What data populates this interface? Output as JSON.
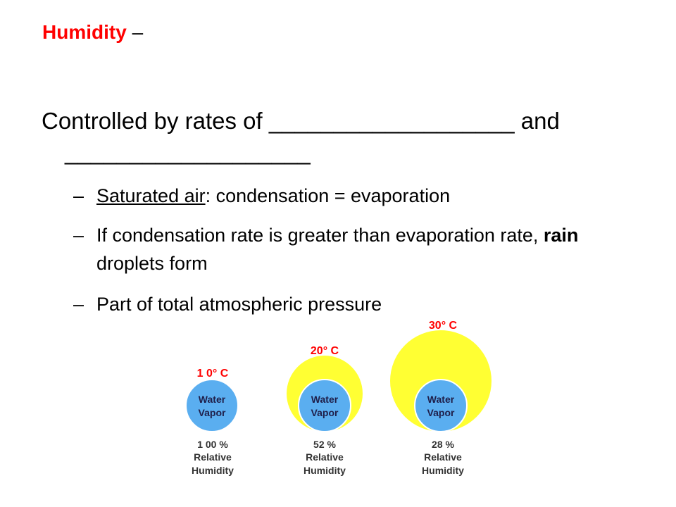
{
  "title": {
    "highlight": "Humidity",
    "dash": "–"
  },
  "main": {
    "prefix": "Controlled by rates of",
    "blank1": "___________________",
    "conj": "and",
    "blank2": "___________________"
  },
  "bullets": [
    {
      "dash": "–",
      "underlined": "Saturated air",
      "rest": ":  condensation = evaporation"
    },
    {
      "dash": "–",
      "before": "If condensation rate is greater than evaporation rate, ",
      "bold": "rain",
      "after": " droplets form"
    },
    {
      "dash": "–",
      "text": "Part of total atmospheric pressure"
    }
  ],
  "diagram": {
    "colors": {
      "saturation": "#ffff33",
      "vapor": "#5aaef0",
      "temp_label": "#ff0000"
    },
    "items": [
      {
        "temp": "1 0° C",
        "vapor_line1": "Water",
        "vapor_line2": "Vapor",
        "percent": "1 00 %",
        "rh_line1": "Relative",
        "rh_line2": "Humidity",
        "relative_humidity_pct": 100
      },
      {
        "temp": "20° C",
        "vapor_line1": "Water",
        "vapor_line2": "Vapor",
        "percent": "52 %",
        "rh_line1": "Relative",
        "rh_line2": "Humidity",
        "relative_humidity_pct": 52
      },
      {
        "temp": "30° C",
        "vapor_line1": "Water",
        "vapor_line2": "Vapor",
        "percent": "28 %",
        "rh_line1": "Relative",
        "rh_line2": "Humidity",
        "relative_humidity_pct": 28
      }
    ]
  }
}
